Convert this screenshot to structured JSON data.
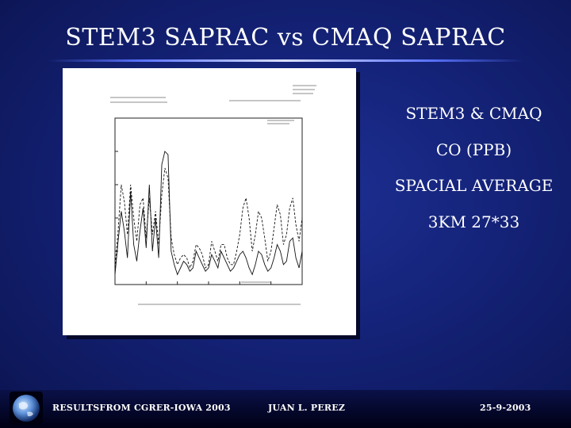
{
  "slide": {
    "title": "STEM3 SAPRAC vs CMAQ SAPRAC"
  },
  "side_list": {
    "items": [
      "STEM3 & CMAQ",
      "CO (PPB)",
      "SPACIAL AVERAGE",
      "3KM 27*33"
    ]
  },
  "footer": {
    "left": "RESULTSFROM CGRER-IOWA 2003",
    "center": "JUAN L. PEREZ",
    "right": "25-9-2003"
  },
  "colors": {
    "background": "#142277",
    "title_rule": "#5b74ff",
    "text": "#ffffff"
  },
  "icons": {
    "footer_logo": "earth-globe-icon"
  },
  "chart_data": {
    "type": "line",
    "title": "",
    "xlabel": "",
    "ylabel": "",
    "xlim": [
      0,
      120
    ],
    "ylim": [
      0,
      5
    ],
    "grid": false,
    "x_ticks": [
      0,
      20,
      40,
      60,
      80,
      100
    ],
    "series": [
      {
        "style": "solid",
        "x": [
          0,
          2,
          4,
          6,
          8,
          10,
          12,
          14,
          16,
          18,
          20,
          22,
          24,
          26,
          28,
          30,
          32,
          34,
          36,
          38,
          40,
          42,
          44,
          46,
          48,
          50,
          52,
          54,
          56,
          58,
          60,
          62,
          64,
          66,
          68,
          70,
          72,
          74,
          76,
          78,
          80,
          82,
          84,
          86,
          88,
          90,
          92,
          94,
          96,
          98,
          100,
          102,
          104,
          106,
          108,
          110,
          112,
          114,
          116,
          118,
          120
        ],
        "y": [
          0.3,
          1.3,
          2.2,
          1.6,
          0.8,
          2.8,
          1.2,
          0.7,
          1.6,
          2.3,
          1.1,
          3.0,
          1.0,
          2.0,
          0.8,
          3.6,
          4.0,
          3.9,
          1.0,
          0.6,
          0.3,
          0.5,
          0.7,
          0.6,
          0.4,
          0.5,
          1.0,
          0.8,
          0.6,
          0.4,
          0.5,
          0.9,
          0.7,
          0.5,
          1.0,
          0.8,
          0.6,
          0.4,
          0.5,
          0.7,
          0.9,
          1.0,
          0.8,
          0.5,
          0.3,
          0.6,
          1.0,
          0.9,
          0.6,
          0.4,
          0.5,
          0.8,
          1.2,
          1.0,
          0.6,
          0.7,
          1.3,
          1.4,
          0.8,
          0.5,
          1.0
        ]
      },
      {
        "style": "dashed",
        "x": [
          0,
          2,
          4,
          6,
          8,
          10,
          12,
          14,
          16,
          18,
          20,
          22,
          24,
          26,
          28,
          30,
          32,
          34,
          36,
          38,
          40,
          42,
          44,
          46,
          48,
          50,
          52,
          54,
          56,
          58,
          60,
          62,
          64,
          66,
          68,
          70,
          72,
          74,
          76,
          78,
          80,
          82,
          84,
          86,
          88,
          90,
          92,
          94,
          96,
          98,
          100,
          102,
          104,
          106,
          108,
          110,
          112,
          114,
          116,
          118,
          120
        ],
        "y": [
          0.5,
          1.6,
          3.0,
          2.5,
          1.5,
          3.0,
          2.0,
          1.3,
          2.4,
          2.6,
          1.4,
          2.6,
          1.5,
          2.2,
          1.2,
          2.7,
          3.5,
          3.2,
          1.4,
          0.9,
          0.6,
          0.8,
          0.9,
          0.8,
          0.5,
          0.7,
          1.2,
          1.1,
          0.9,
          0.5,
          0.6,
          1.3,
          1.0,
          0.7,
          1.2,
          1.2,
          0.8,
          0.6,
          0.6,
          1.0,
          1.5,
          2.3,
          2.6,
          2.0,
          1.0,
          1.5,
          2.2,
          2.0,
          1.4,
          0.7,
          1.0,
          1.7,
          2.4,
          2.1,
          1.2,
          1.5,
          2.3,
          2.6,
          1.8,
          1.3,
          2.0
        ]
      }
    ]
  }
}
